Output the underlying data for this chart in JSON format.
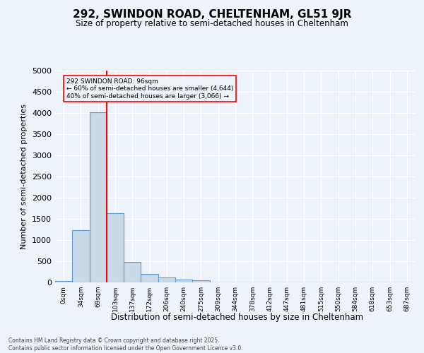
{
  "title": "292, SWINDON ROAD, CHELTENHAM, GL51 9JR",
  "subtitle": "Size of property relative to semi-detached houses in Cheltenham",
  "xlabel": "Distribution of semi-detached houses by size in Cheltenham",
  "ylabel": "Number of semi-detached properties",
  "categories": [
    "0sqm",
    "34sqm",
    "69sqm",
    "103sqm",
    "137sqm",
    "172sqm",
    "206sqm",
    "240sqm",
    "275sqm",
    "309sqm",
    "344sqm",
    "378sqm",
    "412sqm",
    "447sqm",
    "481sqm",
    "515sqm",
    "550sqm",
    "584sqm",
    "618sqm",
    "653sqm",
    "687sqm"
  ],
  "values": [
    40,
    1240,
    4020,
    1640,
    480,
    195,
    115,
    65,
    50,
    0,
    0,
    0,
    0,
    0,
    0,
    0,
    0,
    0,
    0,
    0,
    0
  ],
  "bar_color": "#c9d9e8",
  "bar_edge_color": "#5b9bd5",
  "red_line_x": 2.5,
  "annotation_text": "292 SWINDON ROAD: 96sqm\n← 60% of semi-detached houses are smaller (4,644)\n40% of semi-detached houses are larger (3,066) →",
  "ylim": [
    0,
    5000
  ],
  "yticks": [
    0,
    500,
    1000,
    1500,
    2000,
    2500,
    3000,
    3500,
    4000,
    4500,
    5000
  ],
  "background_color": "#eef2f9",
  "grid_color": "#ffffff",
  "footer_line1": "Contains HM Land Registry data © Crown copyright and database right 2025.",
  "footer_line2": "Contains public sector information licensed under the Open Government Licence v3.0."
}
